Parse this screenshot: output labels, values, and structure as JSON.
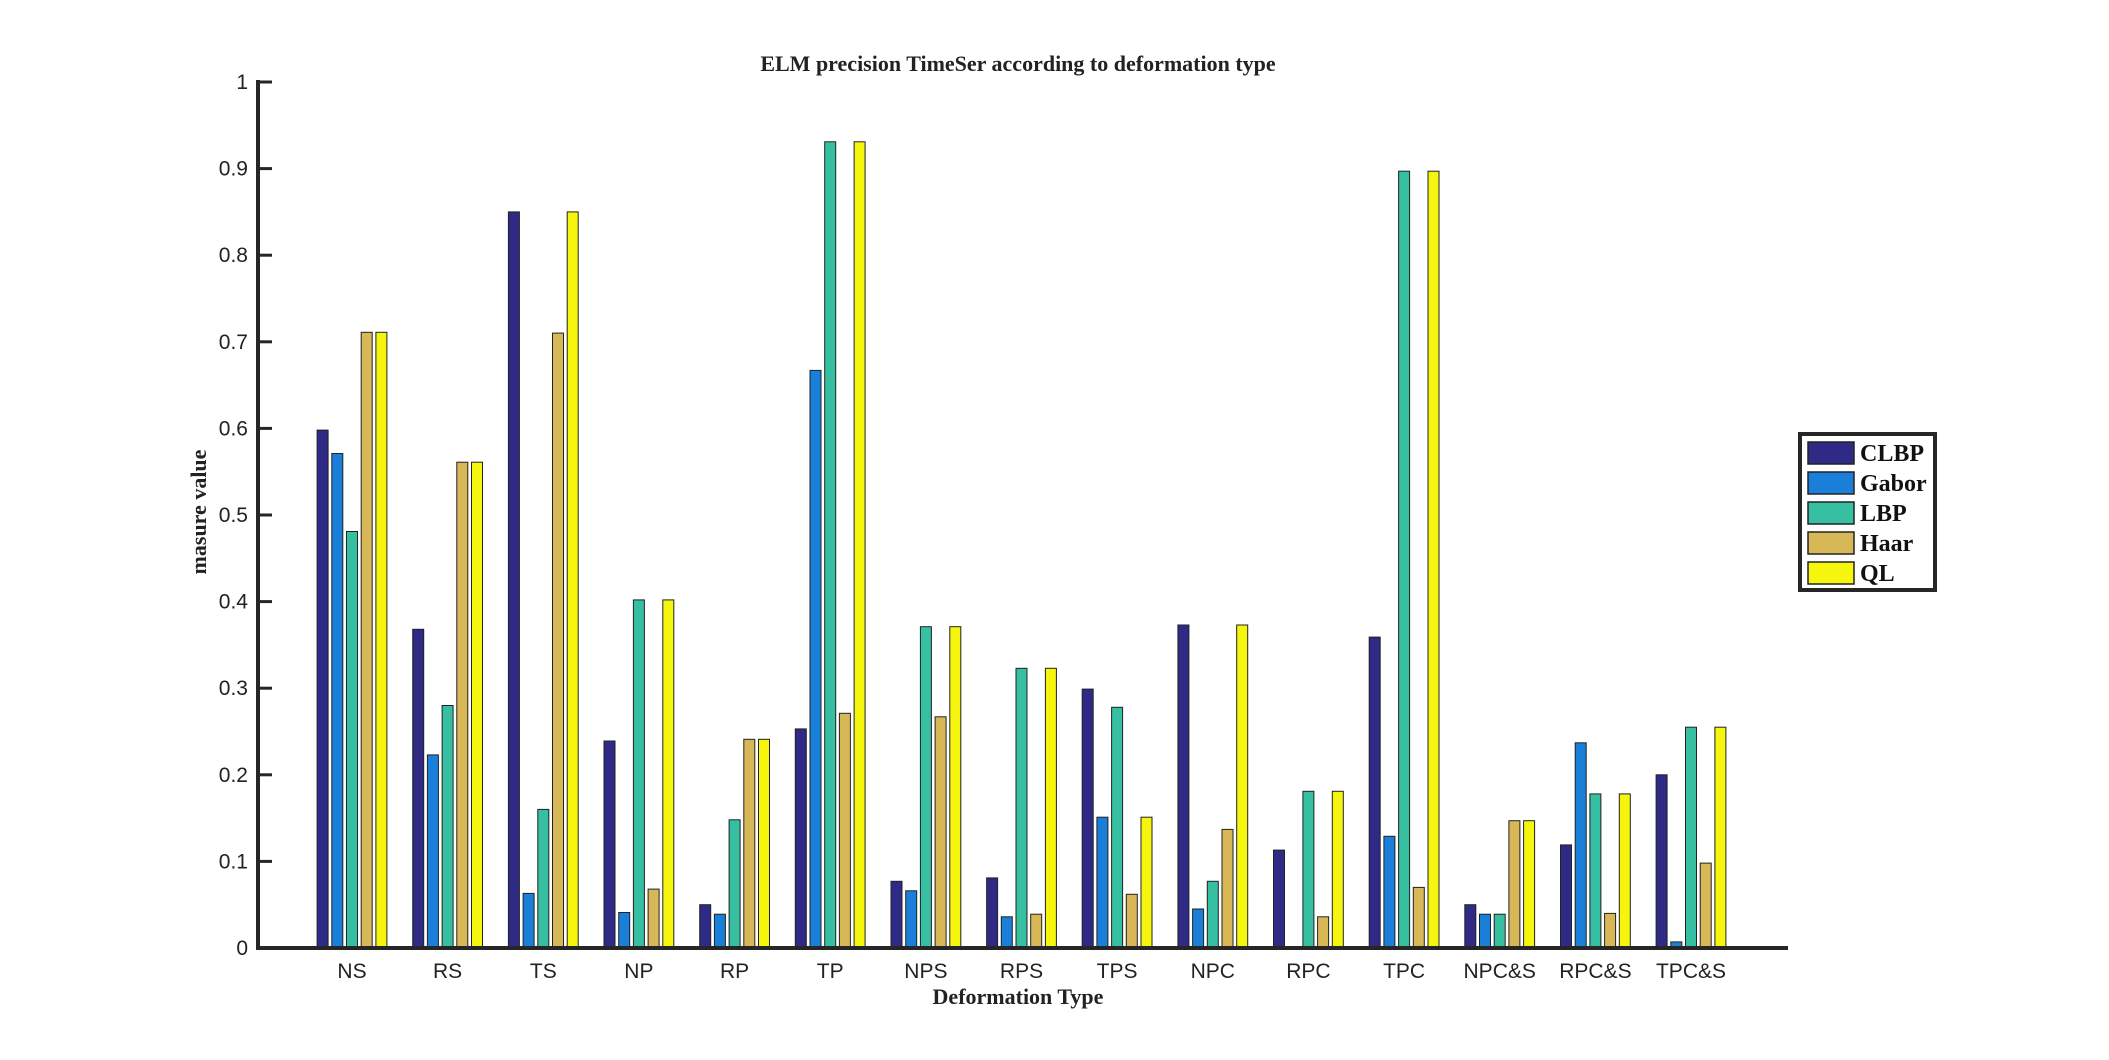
{
  "chart_data": {
    "type": "bar",
    "title": "ELM precision TimeSer according to deformation type",
    "xlabel": "Deformation Type",
    "ylabel": "masure value",
    "ylim": [
      0,
      1
    ],
    "yticks": [
      "0",
      "0.1",
      "0.2",
      "0.3",
      "0.4",
      "0.5",
      "0.6",
      "0.7",
      "0.8",
      "0.9",
      "1"
    ],
    "categories": [
      "NS",
      "RS",
      "TS",
      "NP",
      "RP",
      "TP",
      "NPS",
      "RPS",
      "TPS",
      "NPC",
      "RPC",
      "TPC",
      "NPC&S",
      "RPC&S",
      "TPC&S"
    ],
    "series": [
      {
        "name": "CLBP",
        "color": "#2e2a86",
        "values": [
          0.598,
          0.368,
          0.85,
          0.239,
          0.05,
          0.253,
          0.077,
          0.081,
          0.299,
          0.373,
          0.113,
          0.359,
          0.05,
          0.119,
          0.2
        ]
      },
      {
        "name": "Gabor",
        "color": "#1a7fd8",
        "values": [
          0.571,
          0.223,
          0.063,
          0.041,
          0.039,
          0.667,
          0.066,
          0.036,
          0.151,
          0.045,
          0.0,
          0.129,
          0.039,
          0.237,
          0.007
        ]
      },
      {
        "name": "LBP",
        "color": "#36bfa0",
        "values": [
          0.481,
          0.28,
          0.16,
          0.402,
          0.148,
          0.931,
          0.371,
          0.323,
          0.278,
          0.077,
          0.181,
          0.897,
          0.039,
          0.178,
          0.255
        ]
      },
      {
        "name": "Haar",
        "color": "#d8b757",
        "values": [
          0.711,
          0.561,
          0.71,
          0.068,
          0.241,
          0.271,
          0.267,
          0.039,
          0.062,
          0.137,
          0.036,
          0.07,
          0.147,
          0.04,
          0.098
        ]
      },
      {
        "name": "QL",
        "color": "#f5f50e",
        "values": [
          0.711,
          0.561,
          0.85,
          0.402,
          0.241,
          0.931,
          0.371,
          0.323,
          0.151,
          0.373,
          0.181,
          0.897,
          0.147,
          0.178,
          0.255
        ]
      }
    ],
    "legend_position": "right",
    "grid": false
  }
}
